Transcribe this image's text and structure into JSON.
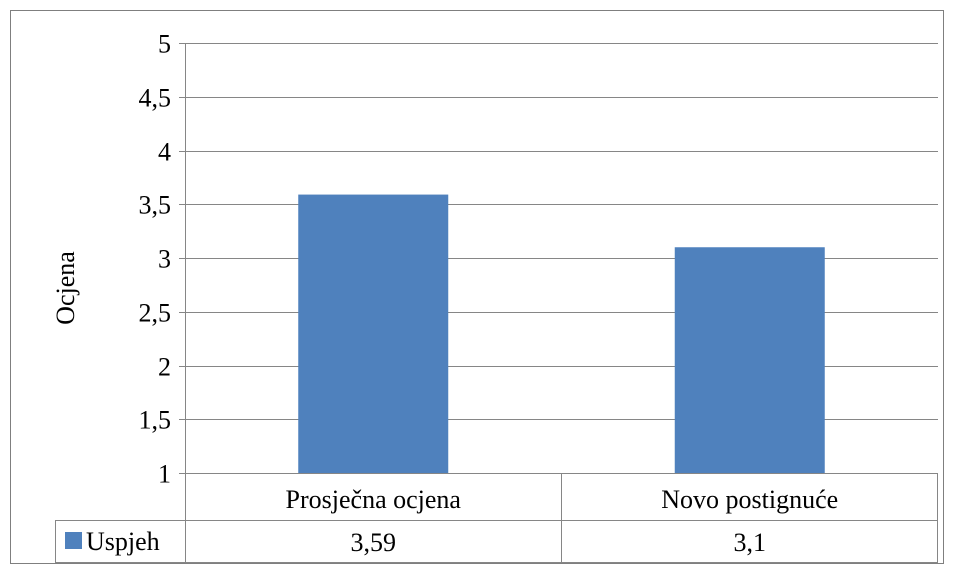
{
  "chart_data": {
    "type": "bar",
    "title": "",
    "xlabel": "",
    "ylabel": "Ocjena",
    "ylim": [
      1,
      5
    ],
    "ytick_labels": [
      "1",
      "1,5",
      "2",
      "2,5",
      "3",
      "3,5",
      "4",
      "4,5",
      "5"
    ],
    "ytick_values": [
      1,
      1.5,
      2,
      2.5,
      3,
      3.5,
      4,
      4.5,
      5
    ],
    "categories": [
      "Prosječna ocjena",
      "Novo postignuće"
    ],
    "series": [
      {
        "name": "Uspjeh",
        "values": [
          3.59,
          3.1
        ],
        "value_labels": [
          "3,59",
          "3,1"
        ],
        "color": "#4F81BD"
      }
    ],
    "grid": true,
    "legend": "data-table-left",
    "data_table": true
  }
}
